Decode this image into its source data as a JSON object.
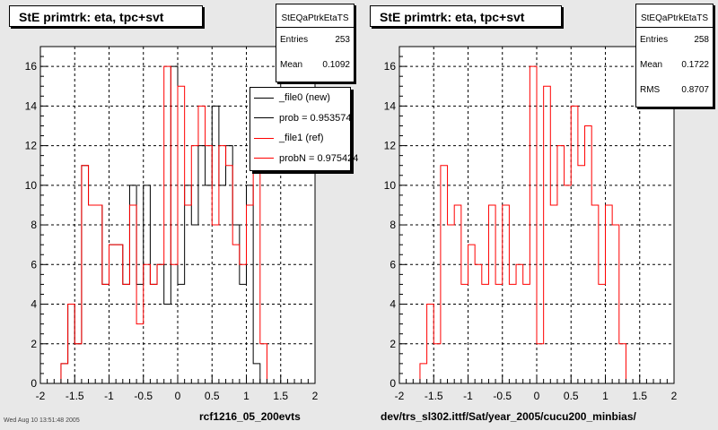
{
  "left_panel": {
    "title": "StE primtrk: eta, tpc+svt",
    "stats": {
      "name": "StEQaPtrkEtaTS",
      "rows": [
        {
          "label": "Entries",
          "value": "253"
        },
        {
          "label": "Mean",
          "value": "0.1092"
        }
      ]
    },
    "legend": [
      {
        "label": "_file0 (new)",
        "color": "#000000"
      },
      {
        "label": "prob = 0.953574",
        "color": "#000000"
      },
      {
        "label": "_file1 (ref)",
        "color": "#ff0000"
      },
      {
        "label": "probN = 0.975424",
        "color": "#ff0000"
      }
    ],
    "footer": "rcf1216_05_200evts",
    "stamp": "Wed Aug 10 13:51:48 2005"
  },
  "right_panel": {
    "title": "StE primtrk: eta, tpc+svt",
    "stats": {
      "name": "StEQaPtrkEtaTS",
      "rows": [
        {
          "label": "Entries",
          "value": "258"
        },
        {
          "label": "Mean",
          "value": "0.1722"
        },
        {
          "label": "RMS",
          "value": "0.8707"
        }
      ]
    },
    "footer": "dev/trs_sl302.ittf/Sat/year_2005/cucu200_minbias/"
  },
  "colors": {
    "new": "#000000",
    "ref": "#ff0000",
    "frame": "#000000",
    "grid": "#000000"
  },
  "chart_data": [
    {
      "type": "histogram",
      "title": "StE primtrk: eta, tpc+svt",
      "xlim": [
        -2,
        2
      ],
      "ylim": [
        0,
        17
      ],
      "xticks": [
        -2,
        -1.5,
        -1,
        -0.5,
        0,
        0.5,
        1,
        1.5,
        2
      ],
      "yticks": [
        0,
        2,
        4,
        6,
        8,
        10,
        12,
        14,
        16
      ],
      "grid": true,
      "bin_edges": [
        -1.7,
        -1.6,
        -1.5,
        -1.4,
        -1.3,
        -1.2,
        -1.1,
        -1.0,
        -0.9,
        -0.8,
        -0.7,
        -0.6,
        -0.5,
        -0.4,
        -0.3,
        -0.2,
        -0.1,
        0.0,
        0.1,
        0.2,
        0.3,
        0.4,
        0.5,
        0.6,
        0.7,
        0.8,
        0.9,
        1.0,
        1.1,
        1.2,
        1.3,
        1.4,
        1.5,
        1.6,
        1.7
      ],
      "series": [
        {
          "name": "_file0 (new)",
          "color": "#000000",
          "values": [
            1,
            4,
            2,
            11,
            9,
            9,
            5,
            7,
            7,
            5,
            10,
            5,
            10,
            5,
            6,
            4,
            16,
            5,
            10,
            8,
            12,
            10,
            14,
            10,
            12,
            8,
            5,
            10,
            1,
            0,
            0,
            0,
            0,
            0
          ]
        },
        {
          "name": "_file1 (ref)",
          "color": "#ff0000",
          "values": [
            1,
            4,
            2,
            11,
            9,
            9,
            5,
            7,
            7,
            5,
            9,
            3,
            6,
            5,
            6,
            16,
            6,
            15,
            9,
            12,
            14,
            12,
            8,
            12,
            11,
            7,
            6,
            9,
            11,
            2,
            0,
            0,
            0,
            0
          ]
        }
      ]
    },
    {
      "type": "histogram",
      "title": "StE primtrk: eta, tpc+svt",
      "xlim": [
        -2,
        2
      ],
      "ylim": [
        0,
        17
      ],
      "xticks": [
        -2,
        -1.5,
        -1,
        -0.5,
        0,
        0.5,
        1,
        1.5,
        2
      ],
      "yticks": [
        0,
        2,
        4,
        6,
        8,
        10,
        12,
        14,
        16
      ],
      "grid": true,
      "bin_edges": [
        -1.7,
        -1.6,
        -1.5,
        -1.4,
        -1.3,
        -1.2,
        -1.1,
        -1.0,
        -0.9,
        -0.8,
        -0.7,
        -0.6,
        -0.5,
        -0.4,
        -0.3,
        -0.2,
        -0.1,
        0.0,
        0.1,
        0.2,
        0.3,
        0.4,
        0.5,
        0.6,
        0.7,
        0.8,
        0.9,
        1.0,
        1.1,
        1.2,
        1.3,
        1.4,
        1.5,
        1.6,
        1.7
      ],
      "series": [
        {
          "name": "",
          "color": "#ff0000",
          "values": [
            1,
            4,
            2,
            11,
            8,
            9,
            5,
            7,
            6,
            5,
            9,
            5,
            9,
            5,
            6,
            5,
            16,
            2,
            15,
            9,
            12,
            10,
            14,
            11,
            13,
            9,
            5,
            9,
            8,
            2,
            0,
            0,
            0,
            0
          ]
        }
      ]
    }
  ]
}
